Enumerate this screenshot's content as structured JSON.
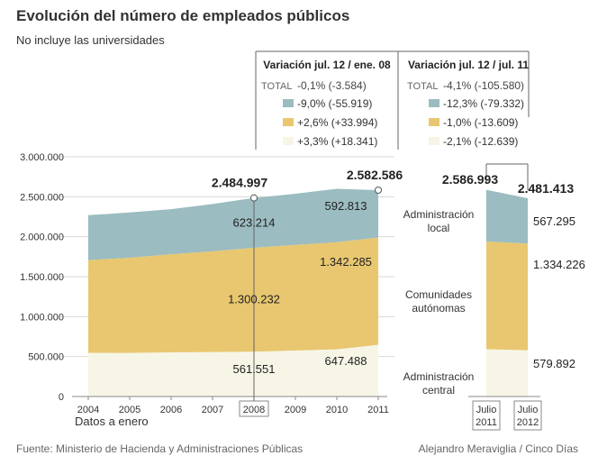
{
  "header": {
    "title": "Evolución del número de empleados públicos",
    "subtitle": "No incluye las universidades"
  },
  "footer": {
    "source": "Fuente: Ministerio de Hacienda y Administraciones Públicas",
    "credit": "Alejandro Meraviglia / Cinco Días"
  },
  "legend": {
    "columns": [
      {
        "title": "Variación jul. 12 / ene. 08",
        "total_label": "TOTAL",
        "total_value": "-0,1% (-3.584)",
        "items": [
          "-9,0% (-55.919)",
          "+2,6% (+33.994)",
          "+3,3% (+18.341)"
        ]
      },
      {
        "title": "Variación jul. 12 / jul. 11",
        "total_label": "TOTAL",
        "total_value": "-4,1% (-105.580)",
        "items": [
          "-12,3% (-79.332)",
          "-1,0% (-13.609)",
          "-2,1% (-12.639)"
        ]
      }
    ],
    "swatch_colors": [
      "#9bbcc0",
      "#e8c770",
      "#f7f5e6"
    ]
  },
  "chart_data": [
    {
      "type": "area",
      "stacked": true,
      "x": [
        2004,
        2005,
        2006,
        2007,
        2008,
        2009,
        2010,
        2011
      ],
      "x_labels": [
        "2004",
        "2005",
        "2006",
        "2007",
        "2008",
        "2009",
        "2010",
        "2011"
      ],
      "xlabel": "Datos a enero",
      "ylim": [
        0,
        3000000
      ],
      "y_ticks": [
        0,
        500000,
        1000000,
        1500000,
        2000000,
        2500000,
        3000000
      ],
      "y_tick_labels": [
        "0",
        "500.000",
        "1.000.000",
        "1.500.000",
        "2.000.000",
        "2.500.000",
        "3.000.000"
      ],
      "grid": true,
      "highlight_x": "2008",
      "series": [
        {
          "name": "Administración central",
          "color": "#f7f5e6",
          "values": [
            547000,
            545000,
            552000,
            557000,
            561551,
            575000,
            590000,
            647488
          ]
        },
        {
          "name": "Comunidades autónomas",
          "color": "#e8c770",
          "values": [
            1160000,
            1192000,
            1228000,
            1260000,
            1300232,
            1322000,
            1342000,
            1342285
          ]
        },
        {
          "name": "Administración local",
          "color": "#9bbcc0",
          "values": [
            563000,
            566000,
            565000,
            593000,
            623214,
            640000,
            668000,
            592813
          ]
        }
      ],
      "totals": [
        2270000,
        2303000,
        2345000,
        2410000,
        2484997,
        2537000,
        2600000,
        2582586
      ],
      "annotations": {
        "total_2008": "2.484.997",
        "total_2011": "2.582.586",
        "local_2008": "623.214",
        "ccaa_2008": "1.300.232",
        "central_2008": "561.551",
        "local_2011": "592.813",
        "ccaa_2011": "1.342.285",
        "central_2011": "647.488"
      }
    },
    {
      "type": "area",
      "stacked": true,
      "x_labels": [
        "Julio\n2011",
        "Julio\n2012"
      ],
      "series": [
        {
          "name": "Administración central",
          "values": [
            592531,
            579892
          ]
        },
        {
          "name": "Comunidades autónomas",
          "values": [
            1347835,
            1334226
          ]
        },
        {
          "name": "Administración local",
          "values": [
            646627,
            567295
          ]
        }
      ],
      "totals": [
        2586993,
        2481413
      ],
      "annotations": {
        "total_2011": "2.586.993",
        "total_2012": "2.481.413",
        "local_2012": "567.295",
        "ccaa_2012": "1.334.226",
        "central_2012": "579.892"
      },
      "series_labels": [
        [
          "Administración",
          "local"
        ],
        [
          "Comunidades",
          "autónomas"
        ],
        [
          "Administración",
          "central"
        ]
      ]
    }
  ]
}
